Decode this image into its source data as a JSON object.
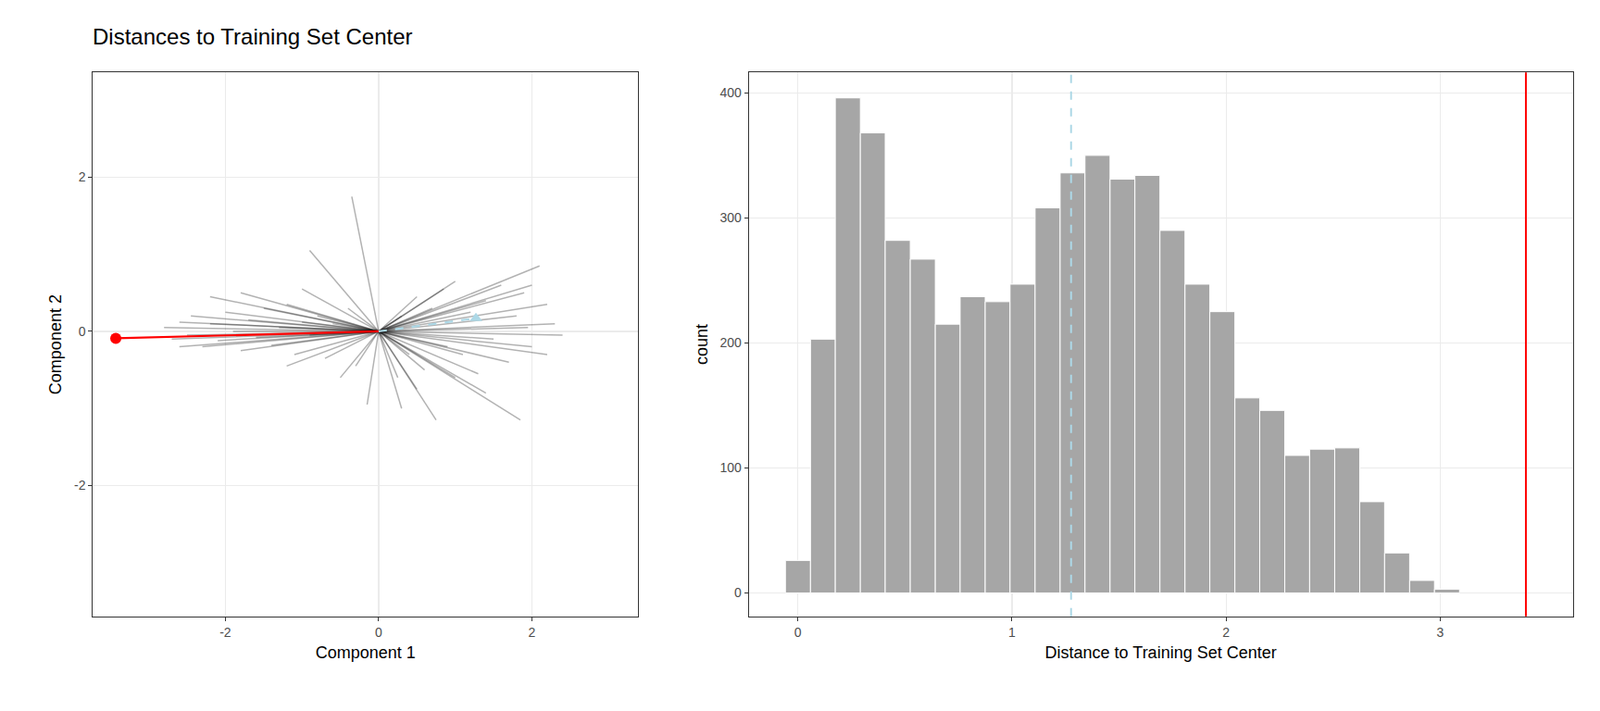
{
  "chart_data": [
    {
      "type": "segments",
      "title": "Distances to Training Set Center",
      "x_label": "Component 1",
      "y_label": "Component 2",
      "center": [
        0,
        0
      ],
      "training": {
        "color": "#000000",
        "line_style": "solid",
        "x": [
          -2.8,
          -2.7,
          -2.6,
          -2.5,
          -2.45,
          -2.3,
          -2.2,
          -2.1,
          -2.0,
          -1.9,
          -1.8,
          -1.7,
          -1.6,
          -1.5,
          -1.4,
          -1.3,
          -1.2,
          -1.1,
          -1.0,
          -0.9,
          -0.8,
          -0.7,
          -0.6,
          -0.5,
          -0.4,
          -0.3,
          -2.2,
          -1.8,
          -0.9,
          -0.35,
          -0.15,
          -1.2,
          -2.6,
          -1.0,
          2.3,
          2.2,
          2.1,
          2.0,
          1.9,
          1.85,
          1.8,
          1.7,
          1.6,
          1.5,
          1.4,
          1.3,
          1.2,
          1.1,
          1.0,
          0.9,
          0.85,
          0.75,
          0.7,
          0.6,
          0.5,
          0.4,
          0.3,
          0.25,
          2.4,
          2.2,
          1.95,
          1.4,
          1.0,
          0.5,
          0.3,
          2.0
        ],
        "y": [
          0.05,
          -0.1,
          0.12,
          -0.05,
          0.2,
          -0.2,
          0.1,
          -0.12,
          0.25,
          0.0,
          -0.25,
          0.15,
          -0.08,
          0.3,
          -0.18,
          0.05,
          0.35,
          -0.3,
          0.12,
          -0.05,
          0.2,
          -0.35,
          0.1,
          -0.6,
          0.3,
          -0.45,
          0.45,
          0.5,
          1.05,
          1.75,
          -0.95,
          -0.45,
          -0.2,
          0.55,
          0.1,
          0.35,
          0.85,
          -0.2,
          0.5,
          -1.15,
          0.2,
          -0.4,
          0.6,
          -0.1,
          0.4,
          -0.55,
          0.25,
          -0.3,
          0.65,
          -0.2,
          0.55,
          -1.15,
          0.3,
          -0.5,
          0.45,
          -0.3,
          0.2,
          -0.6,
          -0.05,
          -0.3,
          0.05,
          -0.8,
          -0.6,
          -0.75,
          -1.0,
          0.6
        ]
      },
      "highlights": [
        {
          "x": -3.43,
          "y": -0.09,
          "color": "#ff0000",
          "marker": "circle",
          "line_style": "solid"
        },
        {
          "x": 1.27,
          "y": 0.17,
          "color": "#add8e6",
          "marker": "triangle-up",
          "line_style": "dash"
        }
      ],
      "xlim": [
        -3.73,
        3.39
      ],
      "ylim": [
        -3.7,
        3.36
      ],
      "xticks": [
        -2,
        0,
        2
      ],
      "yticks": [
        -2,
        0,
        2
      ],
      "grid": true
    },
    {
      "type": "histogram",
      "x_label": "Distance to Training Set Center",
      "y_label": "count",
      "bins": [
        -0.058,
        0.059,
        0.175,
        0.292,
        0.408,
        0.525,
        0.642,
        0.758,
        0.875,
        0.991,
        1.108,
        1.225,
        1.341,
        1.458,
        1.574,
        1.691,
        1.808,
        1.924,
        2.041,
        2.157,
        2.274,
        2.39,
        2.507,
        2.624,
        2.74,
        2.857,
        2.973,
        3.09
      ],
      "counts": [
        26,
        203,
        396,
        368,
        282,
        267,
        215,
        237,
        233,
        247,
        308,
        336,
        350,
        331,
        334,
        290,
        247,
        225,
        156,
        146,
        110,
        115,
        116,
        73,
        32,
        10,
        3
      ],
      "color": "#a6a6a6",
      "vlines": [
        {
          "x": 3.4,
          "color": "#ff0000",
          "line_style": "solid"
        },
        {
          "x": 1.276,
          "color": "#add8e6",
          "line_style": "dash"
        }
      ],
      "xlim": [
        -0.229,
        3.619
      ],
      "ylim": [
        -18.8,
        416.3
      ],
      "xticks": [
        0,
        1,
        2,
        3
      ],
      "yticks": [
        0,
        100,
        200,
        300,
        400
      ],
      "grid": true
    }
  ]
}
